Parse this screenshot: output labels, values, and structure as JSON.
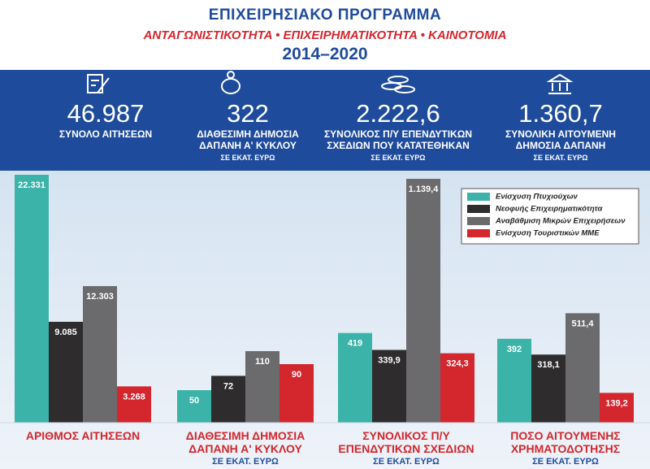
{
  "header": {
    "title": "ΕΠΙΧΕΙΡΗΣΙΑΚΟ ΠΡΟΓΡΑΜΜΑ",
    "subtitle": "ΑΝΤΑΓΩΝΙΣΤΙΚΟΤΗΤΑ • ΕΠΙΧΕΙΡΗΜΑΤΙΚΟΤΗΤΑ • ΚΑΙΝΟΤΟΜΙΑ",
    "period": "2014–2020"
  },
  "summary": [
    {
      "number": "46.987",
      "label_lines": [
        "ΣΥΝΟΛΟ ΑΙΤΗΣΕΩΝ"
      ],
      "unit": null
    },
    {
      "number": "322",
      "label_lines": [
        "ΔΙΑΘΕΣΙΜΗ ΔΗΜΟΣΙΑ",
        "ΔΑΠΑΝΗ Α' ΚΥΚΛΟΥ"
      ],
      "unit": "ΣΕ ΕΚΑΤ. ΕΥΡΩ"
    },
    {
      "number": "2.222,6",
      "label_lines": [
        "ΣΥΝΟΛΙΚΟΣ Π/Υ ΕΠΕΝΔΥΤΙΚΩΝ",
        "ΣΧΕΔΙΩΝ ΠΟΥ ΚΑΤΑΤΕΘΗΚΑΝ"
      ],
      "unit": "ΣΕ ΕΚΑΤ. ΕΥΡΩ"
    },
    {
      "number": "1.360,7",
      "label_lines": [
        "ΣΥΝΟΛΙΚΗ ΑΙΤΟΥΜΕΝΗ",
        "ΔΗΜΟΣΙΑ ΔΑΠΑΝΗ"
      ],
      "unit": "ΣΕ ΕΚΑΤ. ΕΥΡΩ"
    }
  ],
  "chart_data": {
    "type": "bar",
    "categories": [
      [
        "ΑΡΙΘΜΟΣ ΑΙΤΗΣΕΩΝ"
      ],
      [
        "ΔΙΑΘΕΣΙΜΗ ΔΗΜΟΣΙΑ",
        "ΔΑΠΑΝΗ Α' ΚΥΚΛΟΥ"
      ],
      [
        "ΣΥΝΟΛΙΚΟΣ Π/Υ",
        "ΕΠΕΝΔΥΤΙΚΩΝ  ΣΧΕΔΙΩΝ"
      ],
      [
        "ΠΟΣΟ ΑΙΤΟΥΜΕΝΗΣ",
        "ΧΡΗΜΑΤΟΔΟΤΗΣΗΣ"
      ]
    ],
    "units": [
      null,
      "ΣΕ ΕΚΑΤ. ΕΥΡΩ",
      "ΣΕ ΕΚΑΤ. ΕΥΡΩ",
      "ΣΕ ΕΚΑΤ. ΕΥΡΩ"
    ],
    "series": [
      {
        "name": "Ενίσχυση Πτυχιούχων",
        "color": "#3bb3a8",
        "values": [
          22331,
          50,
          419,
          392
        ],
        "value_labels": [
          "22.331",
          "50",
          "419",
          "392"
        ]
      },
      {
        "name": "Νεοφυής Επιχειρηματικότητα",
        "color": "#2e2c2d",
        "values": [
          9085,
          72,
          339.9,
          318.1
        ],
        "value_labels": [
          "9.085",
          "72",
          "339,9",
          "318,1"
        ]
      },
      {
        "name": "Αναβάθμιση Μικρών Επιχειρήσεων",
        "color": "#6b6b6d",
        "values": [
          12303,
          110,
          1139.4,
          511.4
        ],
        "value_labels": [
          "12.303",
          "110",
          "1.139,4",
          "511,4"
        ]
      },
      {
        "name": "Ενίσχυση Τουριστικών ΜΜΕ",
        "color": "#d3262d",
        "values": [
          3268,
          90,
          324.3,
          139.2
        ],
        "value_labels": [
          "3.268",
          "90",
          "324,3",
          "139,2"
        ]
      }
    ]
  }
}
